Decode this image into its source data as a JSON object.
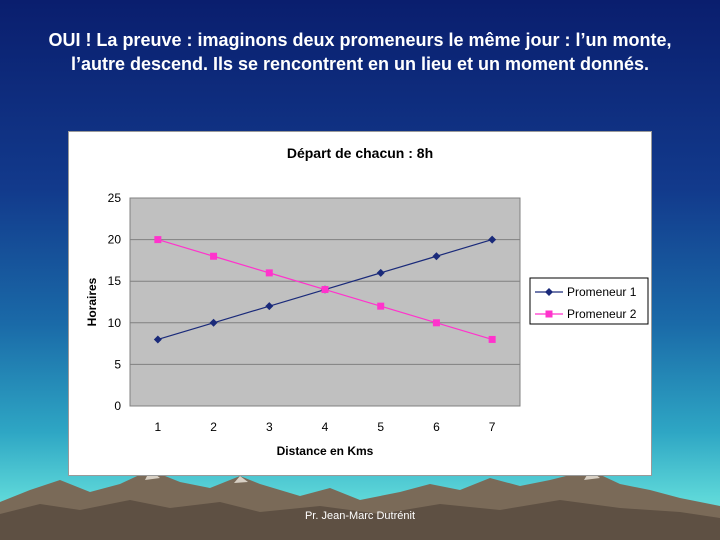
{
  "slide": {
    "title": "OUI ! La preuve : imaginons deux promeneurs le même jour : l’un monte, l’autre descend.  Ils se rencontrent en un lieu et un moment donnés.",
    "footer": "Pr. Jean-Marc Dutrénit"
  },
  "chart_data": {
    "type": "line",
    "title": "Départ de chacun : 8h",
    "xlabel": "Distance en Kms",
    "ylabel": "Horaires",
    "categories": [
      "1",
      "2",
      "3",
      "4",
      "5",
      "6",
      "7"
    ],
    "ylim": [
      0,
      25
    ],
    "yticks": [
      "0",
      "5",
      "10",
      "15",
      "20",
      "25"
    ],
    "grid": true,
    "legend_position": "right",
    "series": [
      {
        "name": "Promeneur 1",
        "values": [
          8,
          10,
          12,
          14,
          16,
          18,
          20
        ],
        "color": "#1a2a7a",
        "marker": "diamond"
      },
      {
        "name": "Promeneur 2",
        "values": [
          20,
          18,
          16,
          14,
          12,
          10,
          8
        ],
        "color": "#ff33cc",
        "marker": "square"
      }
    ],
    "plot_background": "#c0c0c0"
  }
}
